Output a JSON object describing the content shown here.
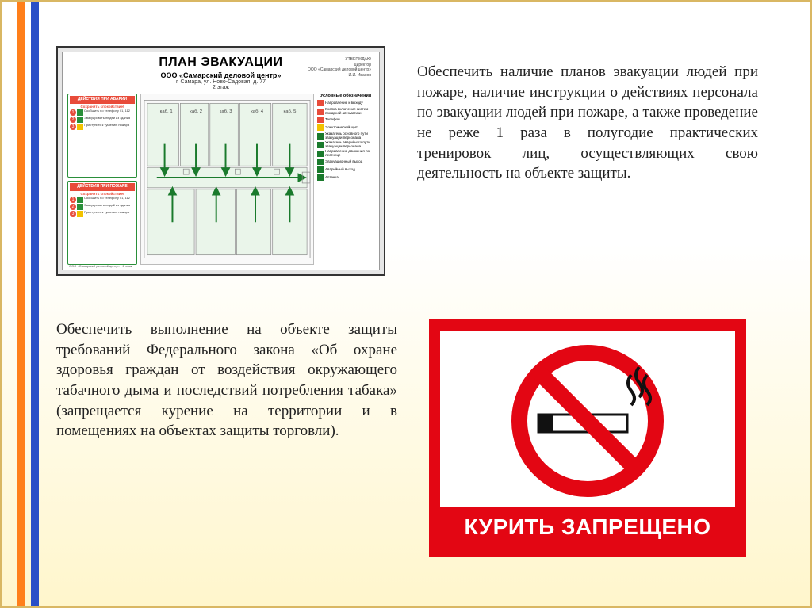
{
  "paragraphs": {
    "p1": "Обеспечить наличие планов эвакуации людей при пожаре, наличие инструкции о действиях персонала по эвакуации людей при пожаре, а также проведение не реже 1 раза в полугодие практических тренировок лиц, осуществляющих свою деятельность на объекте защиты.",
    "p2": "Обеспечить выполнение на объекте защиты требований Федерального закона «Об охране здоровья граждан от воздействия окружающего табачного дыма и последствий потребления табака» (запрещается курение на территории и в помещениях на объектах защиты торговли)."
  },
  "evac": {
    "title": "ПЛАН ЭВАКУАЦИИ",
    "org": "ООО «Самарский деловой центр»",
    "address": "г. Самара, ул. Ново-Садовая, д. 77",
    "floor": "2 этаж",
    "approve_1": "УТВЕРЖДАЮ",
    "approve_2": "Директор",
    "approve_3": "ООО «Самарский деловой центр»",
    "approve_4": "И.И. Иванов",
    "box_accident": "ДЕЙСТВИЯ ПРИ АВАРИИ",
    "box_fire": "ДЕЙСТВИЯ ПРИ ПОЖАРЕ",
    "box_sub": "Сохранять спокойствие!",
    "step1_text": "Сообщить по телефону 01, 112",
    "step2_text": "Эвакуировать людей из здания",
    "step3_text": "Приступить к тушению пожара",
    "legend_title": "Условные обозначения",
    "legend": [
      {
        "label": "Направление к выходу",
        "color": "#e84b3a"
      },
      {
        "label": "Кнопка включения систем пожарной автоматики",
        "color": "#e84b3a"
      },
      {
        "label": "Телефон",
        "color": "#e84b3a"
      },
      {
        "label": "Электрический щит",
        "color": "#f2c200"
      },
      {
        "label": "Указатель основного пути эвакуации персонала",
        "color": "#1a7a2c"
      },
      {
        "label": "Указатель аварийного пути эвакуации персонала",
        "color": "#1a7a2c"
      },
      {
        "label": "Направление движения по лестнице",
        "color": "#1a7a2c"
      },
      {
        "label": "Эвакуационный выход",
        "color": "#1a7a2c"
      },
      {
        "label": "Аварийный выход",
        "color": "#1a7a2c"
      },
      {
        "label": "Аптечка",
        "color": "#1a7a2c"
      }
    ],
    "rooms": [
      "каб. 1",
      "каб. 2",
      "каб. 3",
      "каб. 4",
      "каб. 5",
      "каб. 6"
    ]
  },
  "nosmoke": {
    "label": "КУРИТЬ ЗАПРЕЩЕНО",
    "border_color": "#e30613",
    "ring_color": "#e30613",
    "cig_body": "#ffffff",
    "cig_outline": "#111111",
    "smoke_color": "#111111"
  },
  "palette": {
    "stripe_orange": "#ff7f1a",
    "stripe_blue": "#2a4fc7",
    "frame": "#d9b763",
    "bg_top": "#ffffff",
    "bg_bottom": "#fff6cc"
  }
}
